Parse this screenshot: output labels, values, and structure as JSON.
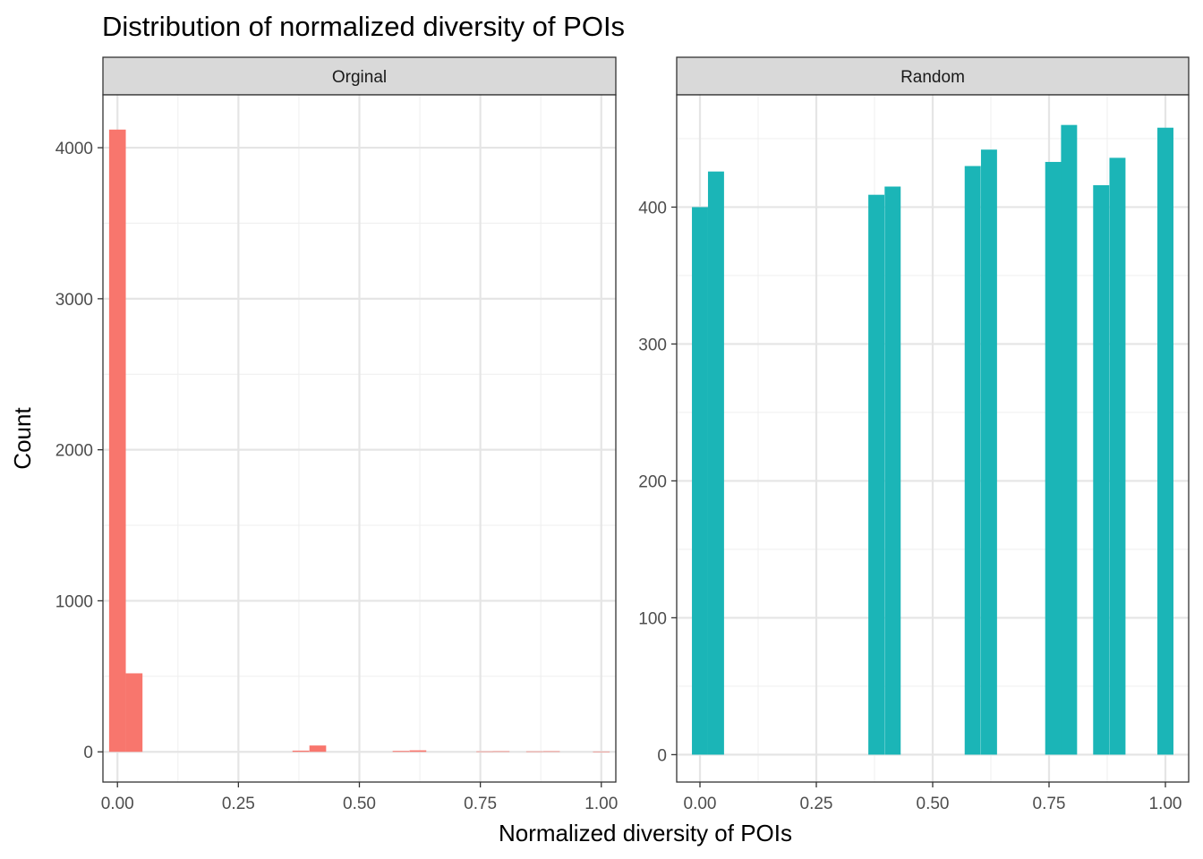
{
  "chart_data": {
    "type": "bar",
    "title": "Distribution of normalized diversity of POIs",
    "xlabel": "Normalized diversity of POIs",
    "ylabel": "Count",
    "grid": true,
    "legend": "none",
    "bin_width": 0.0345,
    "panels": [
      {
        "name": "Orginal",
        "color": "#F8766D",
        "xlim": [
          -0.03,
          1.03
        ],
        "ylim": [
          -200,
          4350
        ],
        "xticks": [
          0.0,
          0.25,
          0.5,
          0.75,
          1.0
        ],
        "xtick_labels": [
          "0.00",
          "0.25",
          "0.50",
          "0.75",
          "1.00"
        ],
        "yticks": [
          0,
          1000,
          2000,
          3000,
          4000
        ],
        "ytick_labels": [
          "0",
          "1000",
          "2000",
          "3000",
          "4000"
        ],
        "bins": [
          {
            "x": 0.0,
            "count": 4120
          },
          {
            "x": 0.0345,
            "count": 520
          },
          {
            "x": 0.379,
            "count": 8
          },
          {
            "x": 0.414,
            "count": 42
          },
          {
            "x": 0.586,
            "count": 6
          },
          {
            "x": 0.621,
            "count": 10
          },
          {
            "x": 0.759,
            "count": 3
          },
          {
            "x": 0.793,
            "count": 4
          },
          {
            "x": 0.862,
            "count": 3
          },
          {
            "x": 0.897,
            "count": 4
          },
          {
            "x": 1.0,
            "count": 2
          }
        ]
      },
      {
        "name": "Random",
        "color": "#1BB5B7",
        "xlim": [
          -0.05,
          1.05
        ],
        "ylim": [
          -20,
          482
        ],
        "xticks": [
          0.0,
          0.25,
          0.5,
          0.75,
          1.0
        ],
        "xtick_labels": [
          "0.00",
          "0.25",
          "0.50",
          "0.75",
          "1.00"
        ],
        "yticks": [
          0,
          100,
          200,
          300,
          400
        ],
        "ytick_labels": [
          "0",
          "100",
          "200",
          "300",
          "400"
        ],
        "bins": [
          {
            "x": 0.0,
            "count": 400
          },
          {
            "x": 0.0345,
            "count": 426
          },
          {
            "x": 0.379,
            "count": 409
          },
          {
            "x": 0.414,
            "count": 415
          },
          {
            "x": 0.586,
            "count": 430
          },
          {
            "x": 0.621,
            "count": 442
          },
          {
            "x": 0.759,
            "count": 433
          },
          {
            "x": 0.793,
            "count": 460
          },
          {
            "x": 0.862,
            "count": 416
          },
          {
            "x": 0.897,
            "count": 436
          },
          {
            "x": 1.0,
            "count": 458
          }
        ]
      }
    ]
  }
}
